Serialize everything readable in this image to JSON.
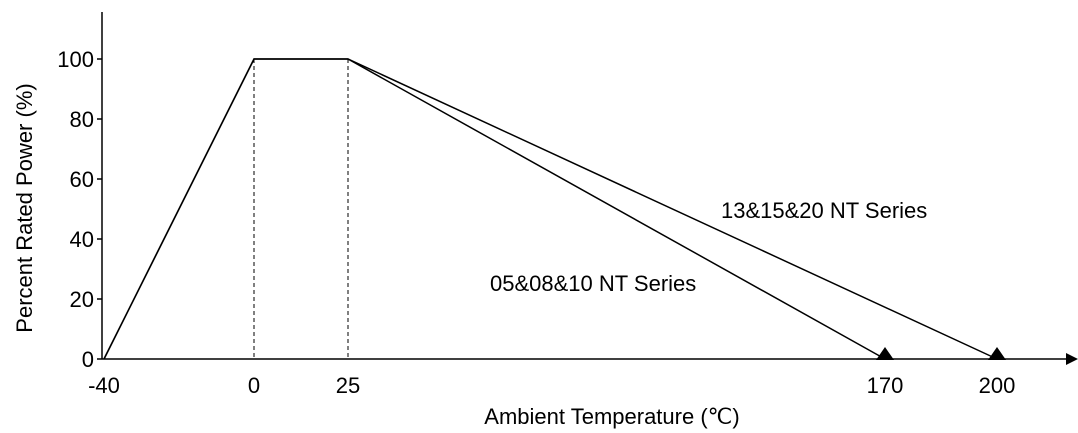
{
  "chart_data": {
    "type": "line",
    "title": "",
    "xlabel": "Ambient Temperature (℃)",
    "ylabel": "Percent Rated Power (%)",
    "x_ticks": [
      "-40",
      "0",
      "25",
      "170",
      "200"
    ],
    "y_ticks": [
      "0",
      "20",
      "40",
      "60",
      "80",
      "100"
    ],
    "xlim": [
      -40,
      200
    ],
    "ylim": [
      0,
      100
    ],
    "grid": false,
    "reference_lines": [
      {
        "x": 0,
        "style": "dashed"
      },
      {
        "x": 25,
        "style": "dashed"
      }
    ],
    "series": [
      {
        "name": "05&08&10 NT Series",
        "points": [
          [
            -40,
            0
          ],
          [
            0,
            100
          ],
          [
            25,
            100
          ],
          [
            170,
            0
          ]
        ]
      },
      {
        "name": "13&15&20 NT Series",
        "points": [
          [
            -40,
            0
          ],
          [
            0,
            100
          ],
          [
            25,
            100
          ],
          [
            200,
            0
          ]
        ]
      }
    ]
  },
  "colors": {
    "line": "#000000",
    "background": "#ffffff"
  }
}
